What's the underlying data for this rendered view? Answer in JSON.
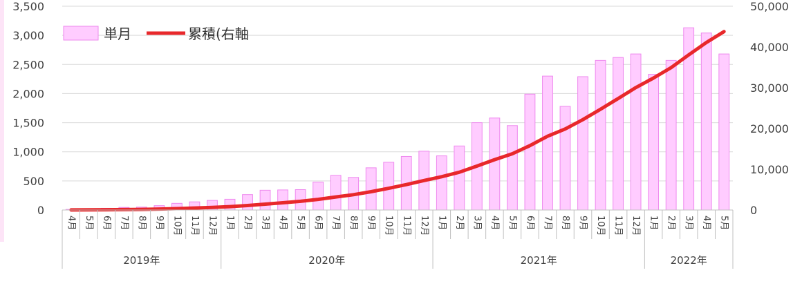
{
  "chart_data": {
    "type": "bar+line",
    "categories": [
      "4月",
      "5月",
      "6月",
      "7月",
      "8月",
      "9月",
      "10月",
      "11月",
      "12月",
      "1月",
      "2月",
      "3月",
      "4月",
      "5月",
      "6月",
      "7月",
      "8月",
      "9月",
      "10月",
      "11月",
      "12月",
      "1月",
      "2月",
      "3月",
      "4月",
      "5月",
      "6月",
      "7月",
      "8月",
      "9月",
      "10月",
      "11月",
      "12月",
      "1月",
      "2月",
      "3月",
      "4月",
      "5月"
    ],
    "years": [
      {
        "label": "2019年",
        "count": 9
      },
      {
        "label": "2020年",
        "count": 12
      },
      {
        "label": "2021年",
        "count": 12
      },
      {
        "label": "2022年",
        "count": 5
      }
    ],
    "series": [
      {
        "name": "単月",
        "type": "bar",
        "axis": "left",
        "values": [
          10,
          20,
          30,
          45,
          50,
          75,
          115,
          140,
          165,
          185,
          265,
          340,
          345,
          350,
          480,
          595,
          560,
          725,
          820,
          920,
          1010,
          930,
          1100,
          1500,
          1580,
          1450,
          1990,
          2300,
          1780,
          2290,
          2570,
          2620,
          2680,
          2330,
          2570,
          3130,
          3040,
          2680
        ]
      },
      {
        "name": "累積(右軸",
        "type": "line",
        "axis": "right",
        "values": [
          10,
          30,
          60,
          105,
          155,
          230,
          345,
          485,
          650,
          835,
          1100,
          1440,
          1785,
          2135,
          2615,
          3210,
          3770,
          4495,
          5315,
          6235,
          7245,
          8175,
          9275,
          10775,
          12355,
          13805,
          15795,
          18095,
          19875,
          22165,
          24735,
          27355,
          30035,
          32365,
          34935,
          38065,
          41105,
          43785
        ]
      }
    ],
    "yLeft": {
      "min": 0,
      "max": 3500,
      "step": 500
    },
    "yRight": {
      "min": 0,
      "max": 50000,
      "step": 10000
    },
    "legend": {
      "position": "top-left",
      "labels": [
        "単月",
        "累積(右軸"
      ]
    },
    "colors": {
      "bar_fill": "#ffccff",
      "bar_stroke": "#ee88ee",
      "line": "#e8282b",
      "axis": "#bfbfbf",
      "grid": "#d9d9d9",
      "edge": "#fde4f7"
    }
  }
}
